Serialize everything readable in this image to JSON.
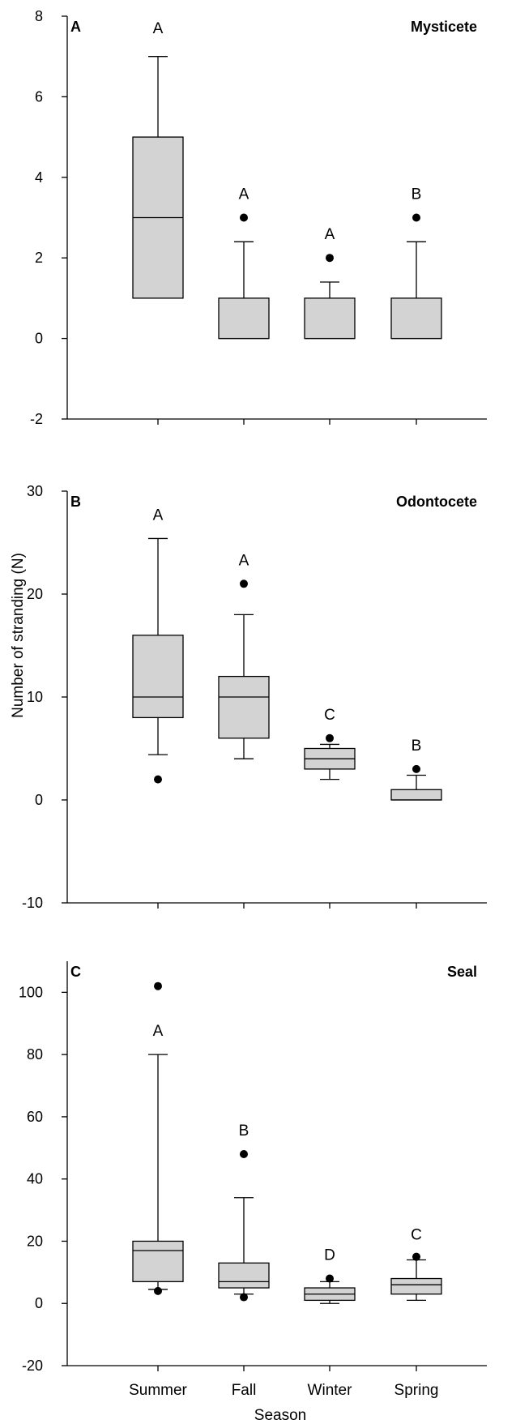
{
  "chart_data": [
    {
      "type": "box",
      "panel_letter": "A",
      "title": "Mysticete",
      "ylim": [
        -2,
        8
      ],
      "yticks": [
        -2,
        0,
        2,
        4,
        6,
        8
      ],
      "categories": [
        "Summer",
        "Fall",
        "Winter",
        "Spring"
      ],
      "boxes": [
        {
          "category": "Summer",
          "whisker_low": 1,
          "q1": 1,
          "median": 3,
          "q3": 5,
          "whisker_high": 7,
          "outliers": [],
          "letter": "A"
        },
        {
          "category": "Fall",
          "whisker_low": 0,
          "q1": 0,
          "median": 0,
          "q3": 1,
          "whisker_high": 2.4,
          "outliers": [
            3
          ],
          "letter": "A"
        },
        {
          "category": "Winter",
          "whisker_low": 0,
          "q1": 0,
          "median": 0,
          "q3": 1,
          "whisker_high": 1.4,
          "outliers": [
            2
          ],
          "letter": "A"
        },
        {
          "category": "Spring",
          "whisker_low": 0,
          "q1": 0,
          "median": 0,
          "q3": 1,
          "whisker_high": 2.4,
          "outliers": [
            3
          ],
          "letter": "B"
        }
      ]
    },
    {
      "type": "box",
      "panel_letter": "B",
      "title": "Odontocete",
      "ylim": [
        -10,
        30
      ],
      "yticks": [
        -10,
        0,
        10,
        20,
        30
      ],
      "categories": [
        "Summer",
        "Fall",
        "Winter",
        "Spring"
      ],
      "boxes": [
        {
          "category": "Summer",
          "whisker_low": 4.4,
          "q1": 8,
          "median": 10,
          "q3": 16,
          "whisker_high": 25.4,
          "outliers": [
            2
          ],
          "letter": "A"
        },
        {
          "category": "Fall",
          "whisker_low": 4,
          "q1": 6,
          "median": 10,
          "q3": 12,
          "whisker_high": 18,
          "outliers": [
            21
          ],
          "letter": "A"
        },
        {
          "category": "Winter",
          "whisker_low": 2,
          "q1": 3,
          "median": 4,
          "q3": 5,
          "whisker_high": 5.4,
          "outliers": [
            6
          ],
          "letter": "C"
        },
        {
          "category": "Spring",
          "whisker_low": 0,
          "q1": 0,
          "median": 0,
          "q3": 1,
          "whisker_high": 2.4,
          "outliers": [
            3
          ],
          "letter": "B"
        }
      ]
    },
    {
      "type": "box",
      "panel_letter": "C",
      "title": "Seal",
      "ylim": [
        -20,
        110
      ],
      "yticks": [
        -20,
        0,
        20,
        40,
        60,
        80,
        100
      ],
      "categories": [
        "Summer",
        "Fall",
        "Winter",
        "Spring"
      ],
      "boxes": [
        {
          "category": "Summer",
          "whisker_low": 4.5,
          "q1": 7,
          "median": 17,
          "q3": 20,
          "whisker_high": 80,
          "outliers": [
            102,
            4
          ],
          "letter": "A"
        },
        {
          "category": "Fall",
          "whisker_low": 3,
          "q1": 5,
          "median": 7,
          "q3": 13,
          "whisker_high": 34,
          "outliers": [
            48,
            2
          ],
          "letter": "B"
        },
        {
          "category": "Winter",
          "whisker_low": 0,
          "q1": 1,
          "median": 3,
          "q3": 5,
          "whisker_high": 7,
          "outliers": [
            8
          ],
          "letter": "D"
        },
        {
          "category": "Spring",
          "whisker_low": 1,
          "q1": 3,
          "median": 6,
          "q3": 8,
          "whisker_high": 14,
          "outliers": [
            15
          ],
          "letter": "C"
        }
      ]
    }
  ],
  "ylabel": "Number of stranding (N)",
  "xlabel": "Season",
  "colors": {
    "box_fill": "#d3d3d3",
    "stroke": "#000000"
  }
}
